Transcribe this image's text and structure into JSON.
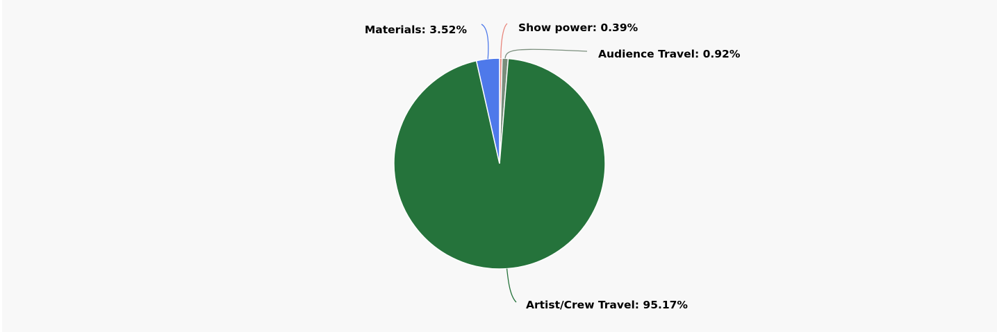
{
  "chart_data": {
    "type": "pie",
    "title": "",
    "slices": [
      {
        "name": "Show power",
        "value": 0.39,
        "label": "Show power: 0.39%",
        "color": "#e8867c"
      },
      {
        "name": "Audience Travel",
        "value": 0.92,
        "label": "Audience Travel: 0.92%",
        "color": "#7a8e7c"
      },
      {
        "name": "Artist/Crew Travel",
        "value": 95.17,
        "label": "Artist/Crew Travel: 95.17%",
        "color": "#25733b"
      },
      {
        "name": "Materials",
        "value": 3.52,
        "label": "Materials: 3.52%",
        "color": "#4e79ea"
      }
    ],
    "start": "top, clockwise",
    "legend": "none, data labels with leader lines"
  }
}
